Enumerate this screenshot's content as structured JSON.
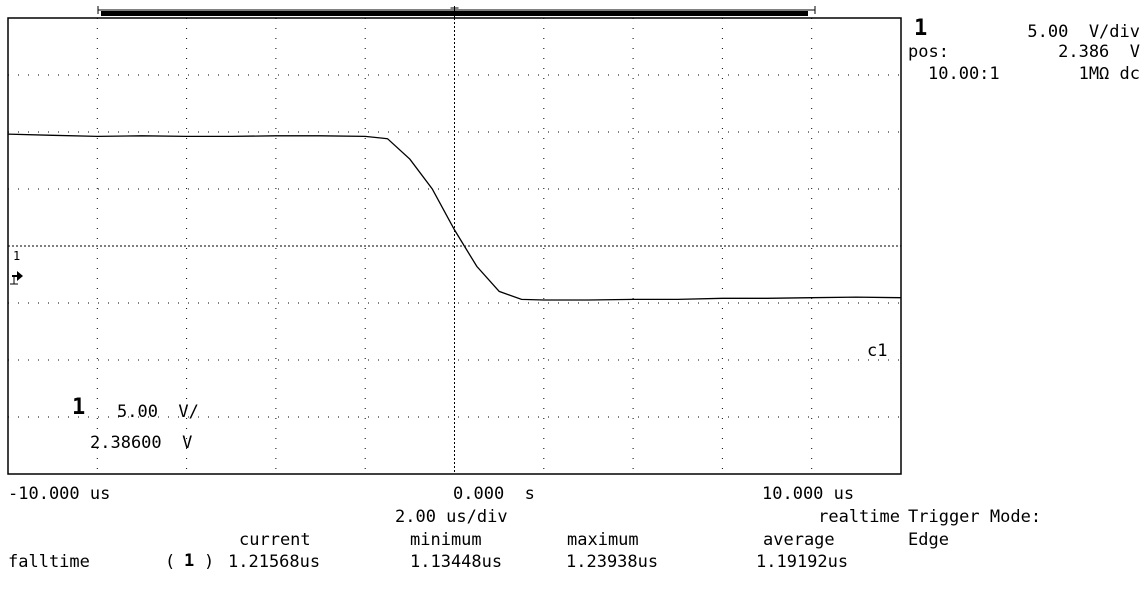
{
  "channel_panel": {
    "channel": "1",
    "scale": "5.00  V/div",
    "pos_label": "pos:",
    "pos_value": "2.386  V",
    "probe_ratio": "10.00:1",
    "coupling": "1MΩ dc"
  },
  "onscreen_channel": {
    "channel": "1",
    "scale": "5.00  V/",
    "offset": "2.38600  V"
  },
  "ground_marker": "1",
  "trace_label": "c1",
  "time_axis": {
    "left": "-10.000 us",
    "center": "0.000  s",
    "right": "10.000 us",
    "timebase": "2.00 us/div",
    "mode": "realtime"
  },
  "trigger": {
    "label": "Trigger Mode:",
    "value": "Edge"
  },
  "measurements": {
    "headers": [
      "current",
      "minimum",
      "maximum",
      "average"
    ],
    "row": {
      "name": "falltime",
      "channel_open": "(",
      "channel": "1",
      "channel_close": ")",
      "values": [
        "1.21568us",
        "1.13448us",
        "1.23938us",
        "1.19192us"
      ]
    }
  },
  "waveform": {
    "x_unit": "us",
    "y_unit": "V",
    "x_range": [
      -10,
      10
    ],
    "y_range": [
      -17.614,
      22.386
    ],
    "points": [
      [
        -10.0,
        12.2
      ],
      [
        -9.0,
        12.1
      ],
      [
        -8.0,
        12.0
      ],
      [
        -7.0,
        12.05
      ],
      [
        -6.0,
        12.0
      ],
      [
        -5.0,
        12.0
      ],
      [
        -4.0,
        12.05
      ],
      [
        -3.0,
        12.05
      ],
      [
        -2.0,
        12.0
      ],
      [
        -1.5,
        11.8
      ],
      [
        -1.0,
        10.0
      ],
      [
        -0.5,
        7.4
      ],
      [
        0.0,
        3.8
      ],
      [
        0.5,
        0.6
      ],
      [
        1.0,
        -1.6
      ],
      [
        1.5,
        -2.3
      ],
      [
        2.0,
        -2.35
      ],
      [
        3.0,
        -2.35
      ],
      [
        4.0,
        -2.3
      ],
      [
        5.0,
        -2.3
      ],
      [
        6.0,
        -2.2
      ],
      [
        7.0,
        -2.2
      ],
      [
        8.0,
        -2.15
      ],
      [
        9.0,
        -2.1
      ],
      [
        10.0,
        -2.15
      ]
    ]
  }
}
